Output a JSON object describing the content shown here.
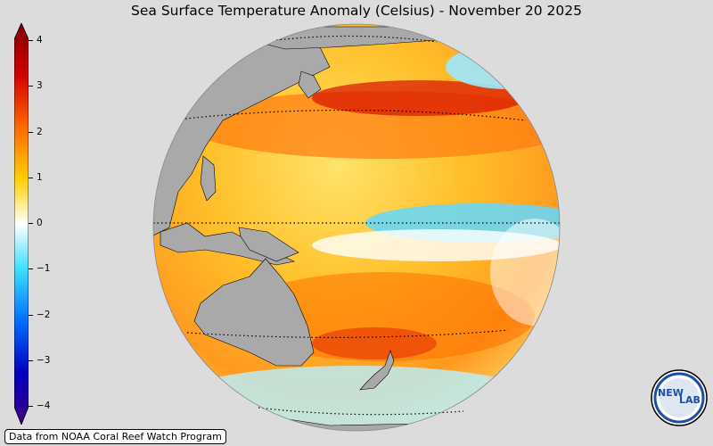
{
  "title": "Sea Surface Temperature Anomaly (Celsius) - November 20 2025",
  "colorbar": {
    "ticks": [
      "4",
      "3",
      "2",
      "1",
      "0",
      "−1",
      "−2",
      "−3",
      "−4"
    ],
    "colors": [
      "#800000",
      "#d40000",
      "#ff6a00",
      "#ffd000",
      "#ffffff",
      "#40e0ff",
      "#0070ff",
      "#0000c0",
      "#400080"
    ]
  },
  "credit": "Data from NOAA Coral Reef Watch Program",
  "logo": {
    "text_left": "NEW",
    "text_right": "LAB"
  }
}
